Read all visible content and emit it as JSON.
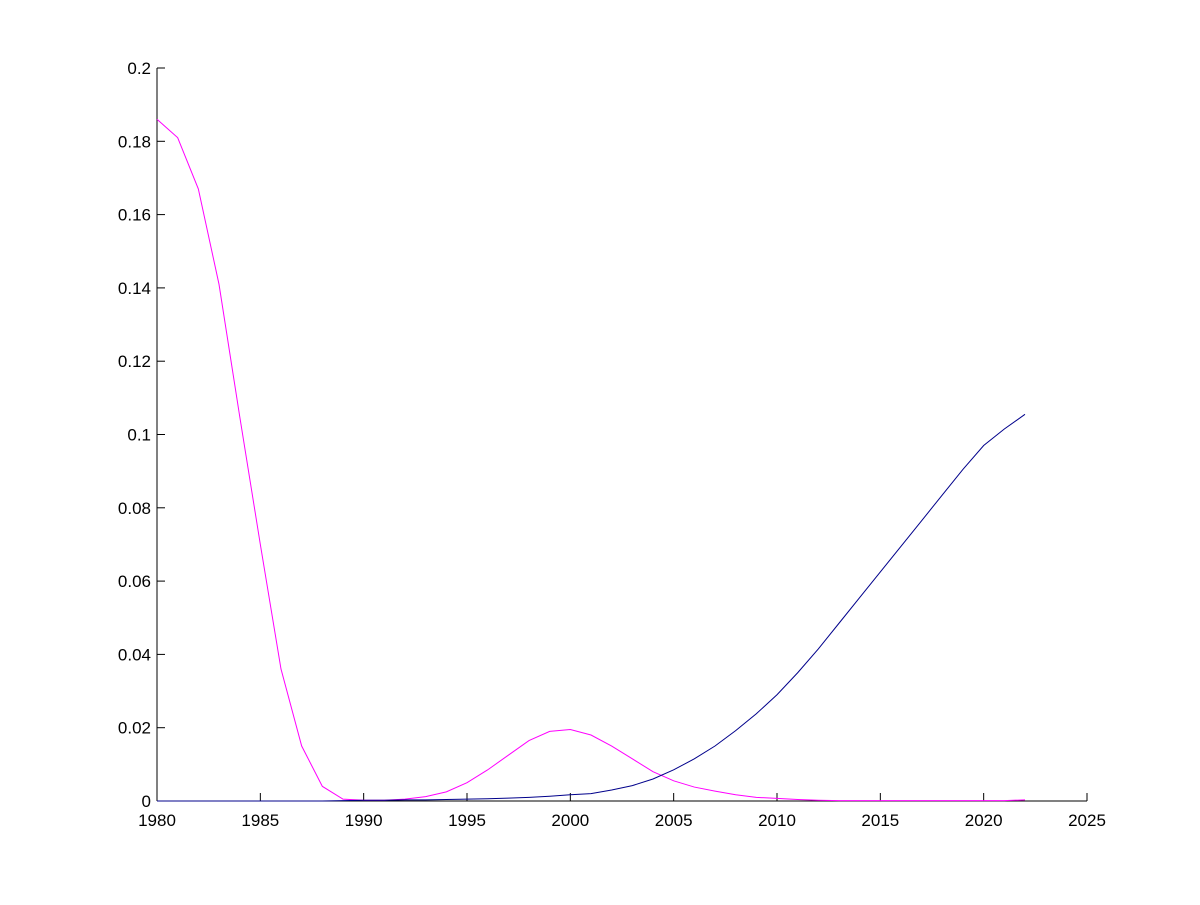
{
  "chart_data": {
    "type": "line",
    "x": [
      1980,
      1981,
      1982,
      1983,
      1984,
      1985,
      1986,
      1987,
      1988,
      1989,
      1990,
      1991,
      1992,
      1993,
      1994,
      1995,
      1996,
      1997,
      1998,
      1999,
      2000,
      2001,
      2002,
      2003,
      2004,
      2005,
      2006,
      2007,
      2008,
      2009,
      2010,
      2011,
      2012,
      2013,
      2014,
      2015,
      2016,
      2017,
      2018,
      2019,
      2020,
      2021,
      2022
    ],
    "series": [
      {
        "color": "#ff00ff",
        "values": [
          0.186,
          0.181,
          0.167,
          0.141,
          0.105,
          0.07,
          0.036,
          0.015,
          0.004,
          0.0005,
          0.0002,
          0.0002,
          0.0005,
          0.0012,
          0.0025,
          0.005,
          0.0085,
          0.0125,
          0.0165,
          0.019,
          0.0195,
          0.018,
          0.015,
          0.0115,
          0.008,
          0.0055,
          0.0038,
          0.0027,
          0.0017,
          0.001,
          0.0007,
          0.0004,
          0.0002,
          0.0001,
          0.0001,
          0.0001,
          0.0001,
          0.0001,
          0.0001,
          0.0001,
          0.0001,
          0.0001,
          0.0003
        ]
      },
      {
        "color": "#00008b",
        "values": [
          0,
          0,
          0,
          0,
          0,
          0,
          0,
          0,
          0,
          0.0001,
          0.0002,
          0.0002,
          0.0003,
          0.0003,
          0.0004,
          0.0005,
          0.0006,
          0.0008,
          0.001,
          0.0013,
          0.0017,
          0.002,
          0.003,
          0.0042,
          0.006,
          0.0085,
          0.0115,
          0.015,
          0.0192,
          0.0238,
          0.029,
          0.035,
          0.0415,
          0.0485,
          0.0555,
          0.0625,
          0.0695,
          0.0765,
          0.0835,
          0.0905,
          0.097,
          0.1015,
          0.1055
        ]
      }
    ],
    "xlim": [
      1980,
      2025
    ],
    "xticks": [
      1980,
      1985,
      1990,
      1995,
      2000,
      2005,
      2010,
      2015,
      2020,
      2025
    ],
    "ylim": [
      0,
      0.2
    ],
    "yticks": [
      0,
      0.02,
      0.04,
      0.06,
      0.08,
      0.1,
      0.12,
      0.14,
      0.16,
      0.18,
      0.2
    ]
  }
}
